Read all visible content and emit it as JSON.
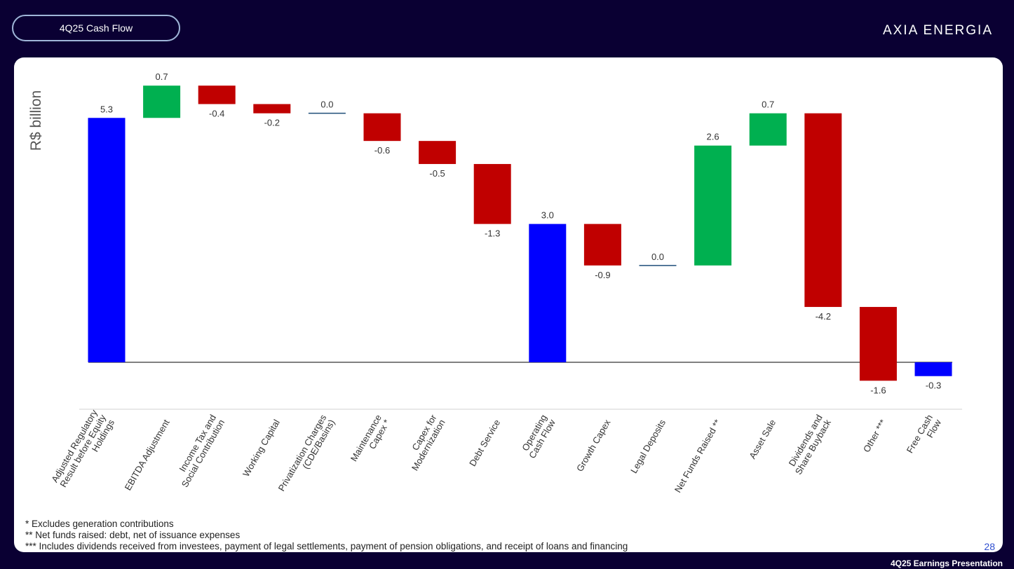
{
  "header": {
    "title": "4Q25 Cash Flow",
    "logo": "AXIA ENERGIA"
  },
  "chart_data": {
    "type": "waterfall",
    "y_label": "R$ billion",
    "categories": [
      "Adjusted Regulatory\nResult before Equity\nHoldings",
      "EBITDA Adjustment",
      "Income Tax and\nSocial Contribution",
      "Working Capital",
      "Privatization Charges\n(CDE/Basins)",
      "Maintenance\nCapex *",
      "Capex for\nModernization",
      "Debt Service",
      "Operating\nCash Flow",
      "Growth Capex",
      "Legal Deposits",
      "Net Funds Raised **",
      "Asset Sale",
      "Dividends and\nShare Buyback",
      "Other ***",
      "Free Cash\nFlow"
    ],
    "values": [
      5.3,
      0.7,
      -0.4,
      -0.2,
      0.0,
      -0.6,
      -0.5,
      -1.3,
      3.0,
      -0.9,
      0.0,
      2.6,
      0.7,
      -4.2,
      -1.6,
      -0.3
    ],
    "value_labels": [
      "5.3",
      "0.7",
      "-0.4",
      "-0.2",
      "0.0",
      "-0.6",
      "-0.5",
      "-1.3",
      "3.0",
      "-0.9",
      "0.0",
      "2.6",
      "0.7",
      "-4.2",
      "-1.6",
      "-0.3"
    ],
    "kinds": [
      "total",
      "delta",
      "delta",
      "delta",
      "delta",
      "delta",
      "delta",
      "delta",
      "total",
      "delta",
      "delta",
      "delta",
      "delta",
      "delta",
      "delta",
      "total"
    ],
    "total_color": "#0000ff",
    "increase_color": "#00b050",
    "decrease_color": "#c00000",
    "zero_color": "#1f4e79"
  },
  "footnotes": [
    "* Excludes generation contributions",
    "** Net funds raised: debt, net of issuance expenses",
    "*** Includes dividends received from investees, payment of legal settlements, payment of pension obligations, and receipt of loans and financing"
  ],
  "footer": {
    "page": "28",
    "caption": "4Q25 Earnings Presentation"
  }
}
